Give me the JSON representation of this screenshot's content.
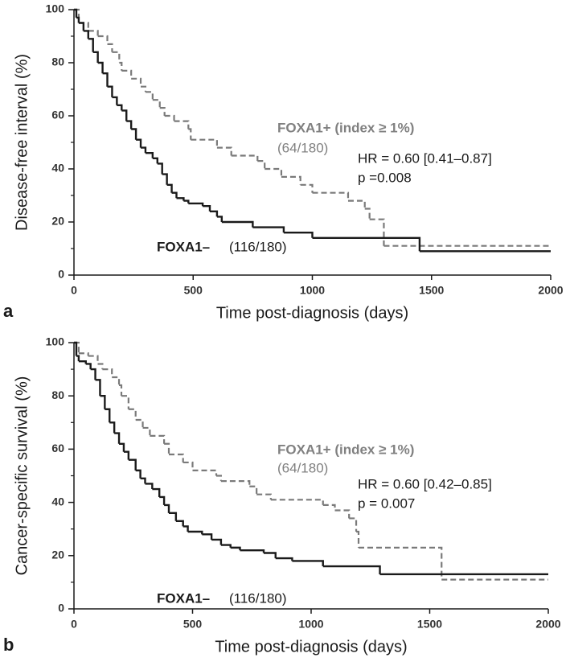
{
  "chart_data": [
    {
      "type": "step",
      "panel_label": "a",
      "x_label": "Time post-diagnosis (days)",
      "y_label": "Disease-free interval (%)",
      "xlim": [
        0,
        2000
      ],
      "xticks": [
        0,
        500,
        1000,
        1500,
        2000
      ],
      "ylim": [
        0,
        100
      ],
      "yticks": [
        0,
        20,
        40,
        60,
        80,
        100
      ],
      "annotations": [
        "FOXA1+ (index ≥ 1%)",
        "(64/180)",
        "HR = 0.60 [0.41–0.87]",
        "p =0.008",
        "FOXA1–",
        "(116/180)"
      ],
      "series": [
        {
          "color": "#1a1a1a",
          "dashed": false,
          "x": [
            0,
            10,
            20,
            40,
            60,
            80,
            100,
            120,
            140,
            160,
            180,
            200,
            220,
            240,
            260,
            280,
            300,
            330,
            350,
            370,
            390,
            410,
            430,
            460,
            480,
            540,
            570,
            600,
            620,
            750,
            880,
            1000,
            1450,
            2000
          ],
          "values": [
            100,
            97,
            95,
            92,
            89,
            84,
            80,
            76,
            71,
            67,
            64,
            62,
            58,
            55,
            51,
            48,
            46,
            44,
            42,
            38,
            34,
            31,
            29,
            28,
            27,
            26,
            24,
            22,
            20,
            18,
            16,
            14,
            9,
            9
          ]
        },
        {
          "color": "#7a7a7a",
          "dashed": true,
          "x": [
            0,
            20,
            60,
            100,
            140,
            160,
            190,
            200,
            240,
            280,
            300,
            330,
            360,
            380,
            420,
            480,
            490,
            600,
            660,
            770,
            800,
            870,
            950,
            1000,
            1150,
            1220,
            1240,
            1300,
            2000
          ],
          "values": [
            100,
            95,
            92,
            90,
            87,
            84,
            80,
            77,
            74,
            71,
            69,
            66,
            63,
            60,
            58,
            55,
            51,
            48,
            45,
            43,
            40,
            37,
            34,
            31,
            28,
            25,
            21,
            11,
            11
          ]
        }
      ]
    },
    {
      "type": "step",
      "panel_label": "b",
      "x_label": "Time post-diagnosis (days)",
      "y_label": "Cancer-specific survival (%)",
      "xlim": [
        0,
        2000
      ],
      "xticks": [
        0,
        500,
        1000,
        1500,
        2000
      ],
      "ylim": [
        0,
        100
      ],
      "yticks": [
        0,
        20,
        40,
        60,
        80,
        100
      ],
      "annotations": [
        "FOXA1+ (index ≥ 1%)",
        "(64/180)",
        "HR = 0.60 [0.42–0.85]",
        "p = 0.007",
        "FOXA1–",
        "(116/180)"
      ],
      "series": [
        {
          "color": "#1a1a1a",
          "dashed": false,
          "x": [
            0,
            10,
            20,
            50,
            70,
            90,
            110,
            130,
            150,
            170,
            190,
            210,
            230,
            260,
            280,
            300,
            330,
            360,
            380,
            400,
            430,
            460,
            480,
            540,
            580,
            620,
            660,
            700,
            800,
            850,
            920,
            1050,
            1290,
            2000
          ],
          "values": [
            100,
            95,
            93,
            92,
            90,
            86,
            80,
            75,
            70,
            66,
            62,
            59,
            56,
            52,
            49,
            47,
            45,
            42,
            39,
            36,
            33,
            31,
            29,
            28,
            26,
            24,
            23,
            22,
            21,
            19,
            18,
            16,
            13,
            13
          ]
        },
        {
          "color": "#7a7a7a",
          "dashed": true,
          "x": [
            0,
            20,
            60,
            100,
            120,
            160,
            190,
            200,
            230,
            260,
            290,
            320,
            380,
            400,
            460,
            500,
            600,
            620,
            740,
            770,
            830,
            1050,
            1100,
            1160,
            1190,
            1200,
            1550,
            2000
          ],
          "values": [
            100,
            96,
            95,
            92,
            90,
            87,
            84,
            80,
            75,
            71,
            68,
            65,
            62,
            58,
            55,
            52,
            50,
            48,
            46,
            43,
            41,
            39,
            37,
            34,
            29,
            23,
            11,
            11
          ]
        }
      ]
    }
  ]
}
